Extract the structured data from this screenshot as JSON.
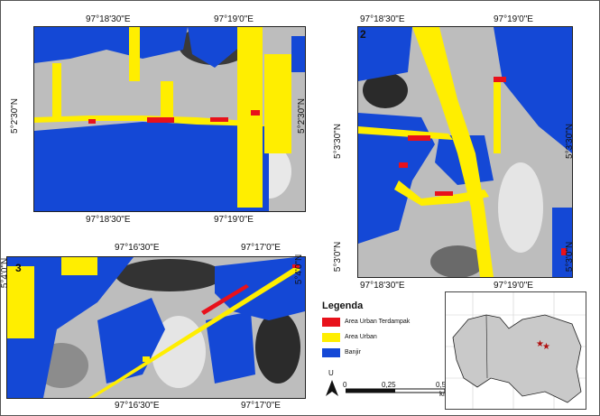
{
  "panels": [
    {
      "number": "",
      "top_labels": [
        "97°18'30\"E",
        "97°19'0\"E"
      ],
      "bottom_labels": [
        "97°18'30\"E",
        "97°19'0\"E"
      ],
      "left_label": "5°2'30\"N",
      "right_label": "5°2'30\"N"
    },
    {
      "number": "2",
      "top_labels": [
        "97°18'30\"E",
        "97°19'0\"E"
      ],
      "bottom_labels": [
        "97°18'30\"E",
        "97°19'0\"E"
      ],
      "left_labels": [
        "5°3'30\"N",
        "5°3'0\"N"
      ],
      "right_labels": [
        "5°3'30\"N",
        "5°3'0\"N"
      ]
    },
    {
      "number": "3",
      "top_labels": [
        "97°16'30\"E",
        "97°17'0\"E"
      ],
      "bottom_labels": [
        "97°16'30\"E",
        "97°17'0\"E"
      ],
      "left_label": "5°4'0\"N",
      "right_label": "5°4'0\"N"
    }
  ],
  "legend": {
    "title": "Legenda",
    "items": [
      {
        "label": "Area Urban Terdampak",
        "color": "#e8111b"
      },
      {
        "label": "Area Urban",
        "color": "#ffee00"
      },
      {
        "label": "Banjir",
        "color": "#1448d6"
      }
    ]
  },
  "scale": {
    "north": "U",
    "ticks": [
      "0",
      "0,25",
      "0,5"
    ],
    "unit": "km"
  },
  "colors": {
    "flood": "#1448d6",
    "urban": "#ffee00",
    "affected": "#e8111b",
    "hillshade": "#bdbdbd"
  }
}
